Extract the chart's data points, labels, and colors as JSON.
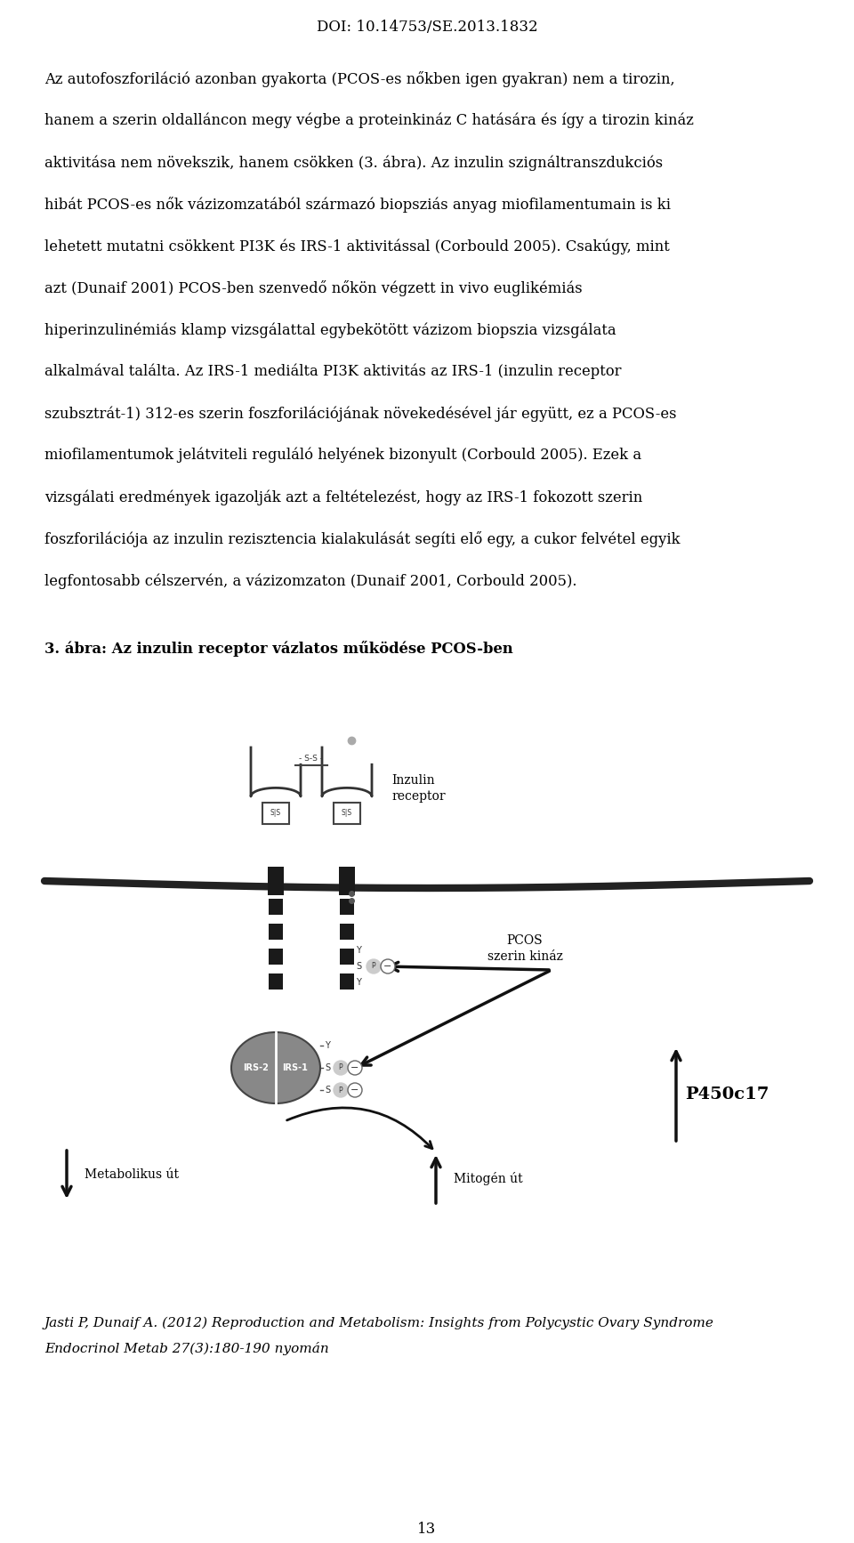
{
  "doi": "DOI: 10.14753/SE.2013.1832",
  "lines": [
    "Az autofoszforiláció azonban gyakorta (PCOS-es nőkben igen gyakran) nem a tirozin,",
    "hanem a szerin oldalláncon megy végbe a proteinkináz C hatására és így a tirozin kináz",
    "aktivitása nem növekszik, hanem csökken (3. ábra). Az inzulin szignáltranszdukciós",
    "hibát PCOS-es nők vázizomzatából származó biopsziás anyag miofilamentumain is ki",
    "lehetett mutatni csökkent PI3K és IRS-1 aktivitással (Corbould 2005). Csakúgy, mint",
    "azt (Dunaif 2001) PCOS-ben szenvedő nőkön végzett in vivo euglikémiás",
    "hiperinzulinémiás klamp vizsgálattal egybekötött vázizom biopszia vizsgálata",
    "alkalmával találta. Az IRS-1 mediálta PI3K aktivitás az IRS-1 (inzulin receptor",
    "szubsztrát-1) 312-es szerin foszforilációjának növekedésével jár együtt, ez a PCOS-es",
    "miofilamentumok jelátviteli reguláló helyének bizonyult (Corbould 2005). Ezek a",
    "vizsgálati eredmények igazolják azt a feltételezést, hogy az IRS-1 fokozott szerin",
    "foszforilációja az inzulin rezisztencia kialakulását segíti elő egy, a cukor felvétel egyik",
    "legfontosabb célszervén, a vázizomzaton (Dunaif 2001, Corbould 2005)."
  ],
  "figure_caption": "3. ábra: Az inzulin receptor vázlatos működése PCOS-ben",
  "citation_line1": "Jasti P, Dunaif A. (2012) Reproduction and Metabolism: Insights from Polycystic Ovary Syndrome",
  "citation_line2": "Endocrinol Metab 27(3):180-190 nyomán",
  "page_number": "13",
  "bg_color": "#ffffff",
  "text_color": "#000000",
  "dark_color": "#1a1a1a",
  "gray_color": "#888888",
  "light_gray": "#cccccc"
}
